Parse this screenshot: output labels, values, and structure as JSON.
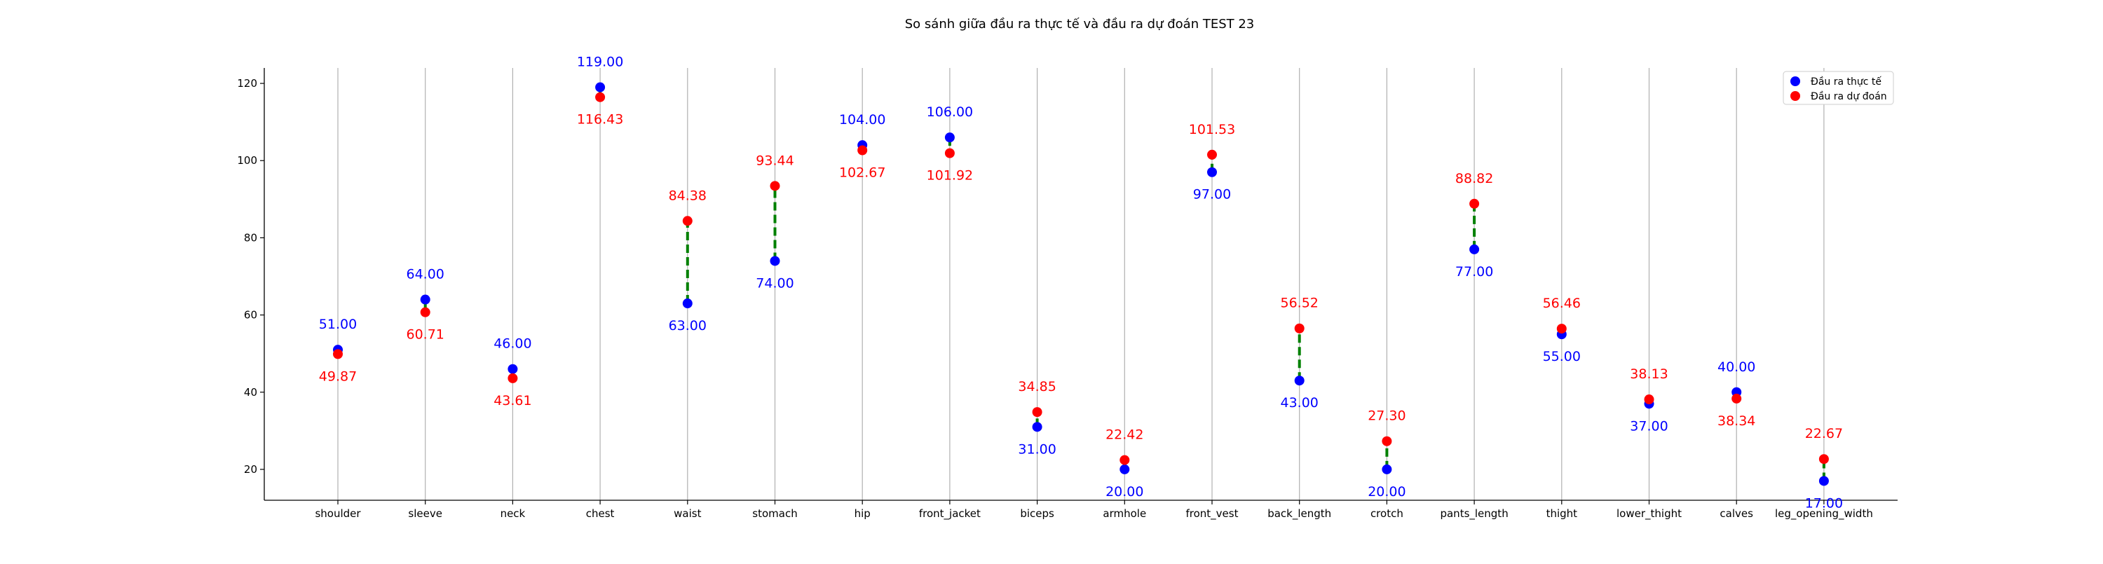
{
  "chart_data": {
    "type": "scatter",
    "title": "So sánh giữa đầu ra thực tế và đầu ra dự đoán TEST 23",
    "xlabel": "",
    "ylabel": "",
    "categories": [
      "shoulder",
      "sleeve",
      "neck",
      "chest",
      "waist",
      "stomach",
      "hip",
      "front_jacket",
      "biceps",
      "armhole",
      "front_vest",
      "back_length",
      "crotch",
      "pants_length",
      "thight",
      "lower_thight",
      "calves",
      "leg_opening_width"
    ],
    "series": [
      {
        "name": "Đầu ra thực tế",
        "color": "#0000ff",
        "values": [
          51.0,
          64.0,
          46.0,
          119.0,
          63.0,
          74.0,
          104.0,
          106.0,
          31.0,
          20.0,
          97.0,
          43.0,
          20.0,
          77.0,
          55.0,
          37.0,
          40.0,
          17.0
        ],
        "labels": [
          "51.00",
          "64.00",
          "46.00",
          "119.00",
          "63.00",
          "74.00",
          "104.00",
          "106.00",
          "31.00",
          "20.00",
          "97.00",
          "43.00",
          "20.00",
          "77.00",
          "55.00",
          "37.00",
          "40.00",
          "17.00"
        ]
      },
      {
        "name": "Đầu ra dự đoán",
        "color": "#ff0000",
        "values": [
          49.87,
          60.71,
          43.61,
          116.43,
          84.38,
          93.44,
          102.67,
          101.92,
          34.85,
          22.42,
          101.53,
          56.52,
          27.3,
          88.82,
          56.46,
          38.13,
          38.34,
          22.67
        ],
        "labels": [
          "49.87",
          "60.71",
          "43.61",
          "116.43",
          "84.38",
          "93.44",
          "102.67",
          "101.92",
          "34.85",
          "22.42",
          "101.53",
          "56.52",
          "27.30",
          "88.82",
          "56.46",
          "38.13",
          "38.34",
          "22.67"
        ]
      }
    ],
    "connector_color": "#008000",
    "yticks": [
      20,
      40,
      60,
      80,
      100,
      120
    ],
    "ylim": [
      12,
      124
    ],
    "grid": "vertical",
    "legend_position": "top-right"
  }
}
